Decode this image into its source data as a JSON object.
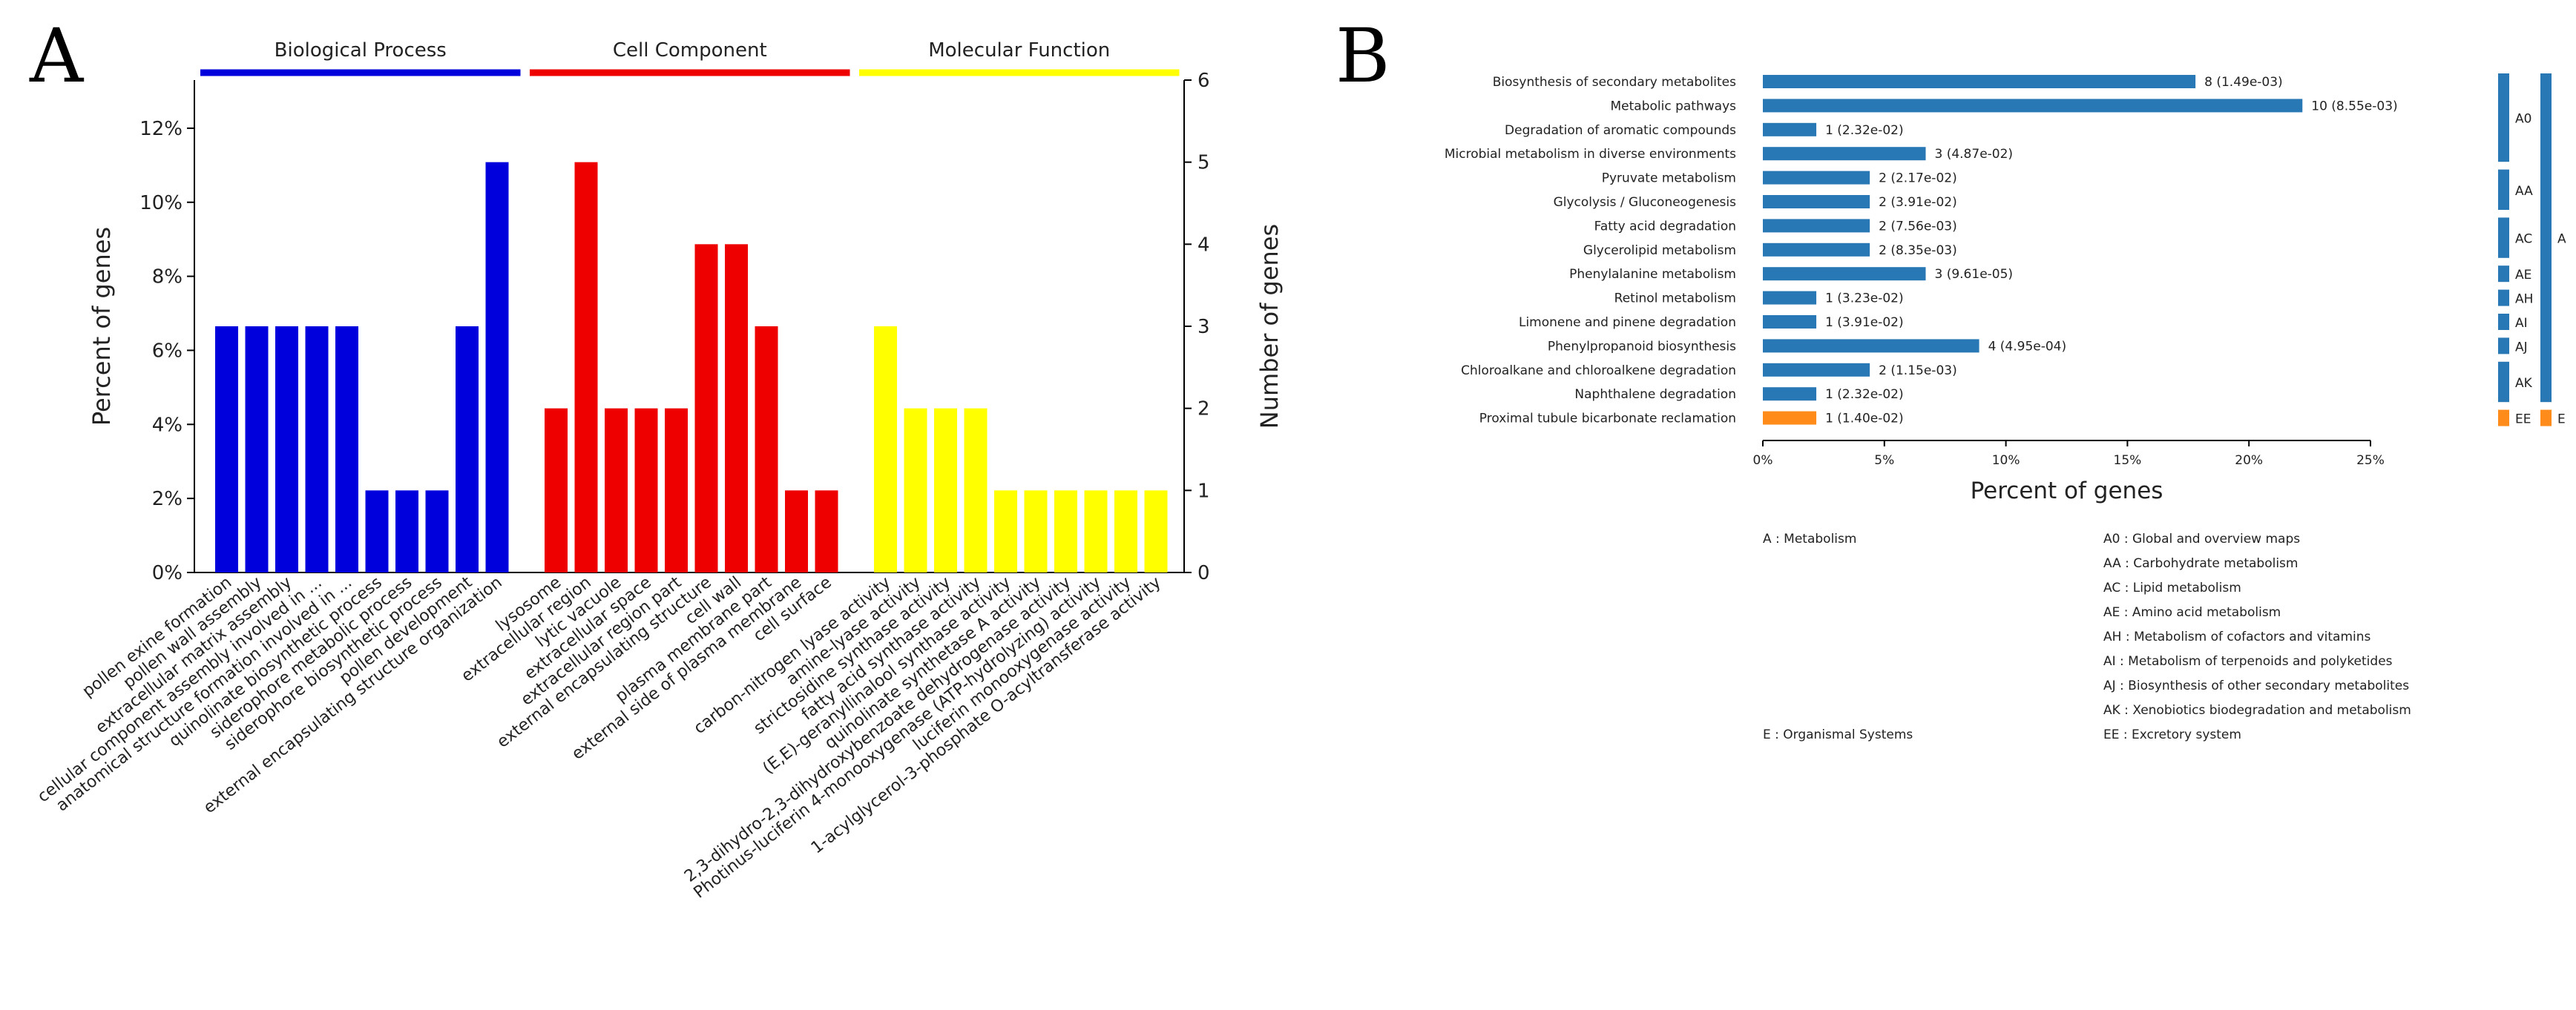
{
  "panel_labels": {
    "a": "A",
    "b": "B"
  },
  "chart_data": [
    {
      "type": "bar",
      "panel": "A",
      "ylabel": "Percent of genes",
      "y2label": "Number of genes",
      "ylim": [
        0,
        13.3
      ],
      "y2lim": [
        0,
        6
      ],
      "yticks": [
        "0%",
        "2%",
        "4%",
        "6%",
        "8%",
        "10%",
        "12%"
      ],
      "y2ticks": [
        "0",
        "1",
        "2",
        "3",
        "4",
        "5",
        "6"
      ],
      "groups": [
        {
          "name": "Biological Process",
          "color": "#0000dd",
          "categories": [
            "pollen exine formation",
            "pollen wall assembly",
            "extracellular matrix assembly",
            "cellular component assembly involved in ...",
            "anatomical structure formation involved in ...",
            "quinolinate biosynthetic process",
            "siderophore metabolic process",
            "siderophore biosynthetic process",
            "pollen development",
            "external encapsulating structure organization"
          ],
          "values": [
            3,
            3,
            3,
            3,
            3,
            1,
            1,
            1,
            3,
            5
          ]
        },
        {
          "name": "Cell Component",
          "color": "#ee0000",
          "categories": [
            "lysosome",
            "extracellular region",
            "lytic vacuole",
            "extracellular space",
            "extracellular region part",
            "external encapsulating structure",
            "cell wall",
            "plasma membrane part",
            "external side of plasma membrane",
            "cell surface"
          ],
          "values": [
            2,
            5,
            2,
            2,
            2,
            4,
            4,
            3,
            1,
            1
          ]
        },
        {
          "name": "Molecular Function",
          "color": "#ffff00",
          "categories": [
            "carbon-nitrogen lyase activity",
            "amine-lyase activity",
            "strictosidine synthase activity",
            "fatty acid synthase activity",
            "(E,E)-geranyllinalool synthase activity",
            "quinolinate synthetase A activity",
            "2,3-dihydro-2,3-dihydroxybenzoate dehydrogenase activity",
            "Photinus-luciferin 4-monooxygenase (ATP-hydrolyzing) activity",
            "luciferin monooxygenase activity",
            "1-acylglycerol-3-phosphate O-acyltransferase activity"
          ],
          "values": [
            3,
            2,
            2,
            2,
            1,
            1,
            1,
            1,
            1,
            1
          ]
        }
      ]
    },
    {
      "type": "bar",
      "orientation": "horizontal",
      "panel": "B",
      "xlabel": "Percent of genes",
      "xlim": [
        0,
        25
      ],
      "xticks": [
        "0%",
        "5%",
        "10%",
        "15%",
        "20%",
        "25%"
      ],
      "colors": {
        "metabolism": "#2878b5",
        "organismal": "#ff8c1a"
      },
      "bars": [
        {
          "name": "Biosynthesis of secondary metabolites",
          "pct": 17.8,
          "label": "8 (1.49e-03)",
          "class": "A0"
        },
        {
          "name": "Metabolic pathways",
          "pct": 22.2,
          "label": "10 (8.55e-03)",
          "class": "A0"
        },
        {
          "name": "Degradation of aromatic compounds",
          "pct": 2.2,
          "label": "1 (2.32e-02)",
          "class": "A0"
        },
        {
          "name": "Microbial metabolism in diverse environments",
          "pct": 6.7,
          "label": "3 (4.87e-02)",
          "class": "A0"
        },
        {
          "name": "Pyruvate metabolism",
          "pct": 4.4,
          "label": "2 (2.17e-02)",
          "class": "AA"
        },
        {
          "name": "Glycolysis / Gluconeogenesis",
          "pct": 4.4,
          "label": "2 (3.91e-02)",
          "class": "AA"
        },
        {
          "name": "Fatty acid degradation",
          "pct": 4.4,
          "label": "2 (7.56e-03)",
          "class": "AC"
        },
        {
          "name": "Glycerolipid metabolism",
          "pct": 4.4,
          "label": "2 (8.35e-03)",
          "class": "AC"
        },
        {
          "name": "Phenylalanine metabolism",
          "pct": 6.7,
          "label": "3 (9.61e-05)",
          "class": "AE"
        },
        {
          "name": "Retinol metabolism",
          "pct": 2.2,
          "label": "1 (3.23e-02)",
          "class": "AH"
        },
        {
          "name": "Limonene and pinene degradation",
          "pct": 2.2,
          "label": "1 (3.91e-02)",
          "class": "AI"
        },
        {
          "name": "Phenylpropanoid biosynthesis",
          "pct": 8.9,
          "label": "4 (4.95e-04)",
          "class": "AJ"
        },
        {
          "name": "Chloroalkane and chloroalkene degradation",
          "pct": 4.4,
          "label": "2 (1.15e-03)",
          "class": "AK"
        },
        {
          "name": "Naphthalene degradation",
          "pct": 2.2,
          "label": "1 (2.32e-02)",
          "class": "AK"
        },
        {
          "name": "Proximal tubule bicarbonate reclamation",
          "pct": 2.2,
          "label": "1 (1.40e-02)",
          "class": "EE"
        }
      ],
      "subclass_brackets": [
        {
          "label": "A0",
          "start": 0,
          "end": 3
        },
        {
          "label": "AA",
          "start": 4,
          "end": 5
        },
        {
          "label": "AC",
          "start": 6,
          "end": 7
        },
        {
          "label": "AE",
          "start": 8,
          "end": 8
        },
        {
          "label": "AH",
          "start": 9,
          "end": 9
        },
        {
          "label": "AI",
          "start": 10,
          "end": 10
        },
        {
          "label": "AJ",
          "start": 11,
          "end": 11
        },
        {
          "label": "AK",
          "start": 12,
          "end": 13
        },
        {
          "label": "EE",
          "start": 14,
          "end": 14
        }
      ],
      "class_brackets": [
        {
          "label": "A",
          "start": 0,
          "end": 13
        },
        {
          "label": "E",
          "start": 14,
          "end": 14
        }
      ],
      "legend_left": [
        {
          "row": 0,
          "text": "A : Metabolism"
        },
        {
          "row": 8,
          "text": "E : Organismal Systems"
        }
      ],
      "legend_right": [
        "A0 : Global and overview maps",
        "AA : Carbohydrate metabolism",
        "AC : Lipid metabolism",
        "AE : Amino acid metabolism",
        "AH : Metabolism of cofactors and vitamins",
        "AI : Metabolism of terpenoids and polyketides",
        "AJ : Biosynthesis of other secondary metabolites",
        "AK : Xenobiotics biodegradation and metabolism",
        "EE : Excretory system"
      ]
    }
  ]
}
